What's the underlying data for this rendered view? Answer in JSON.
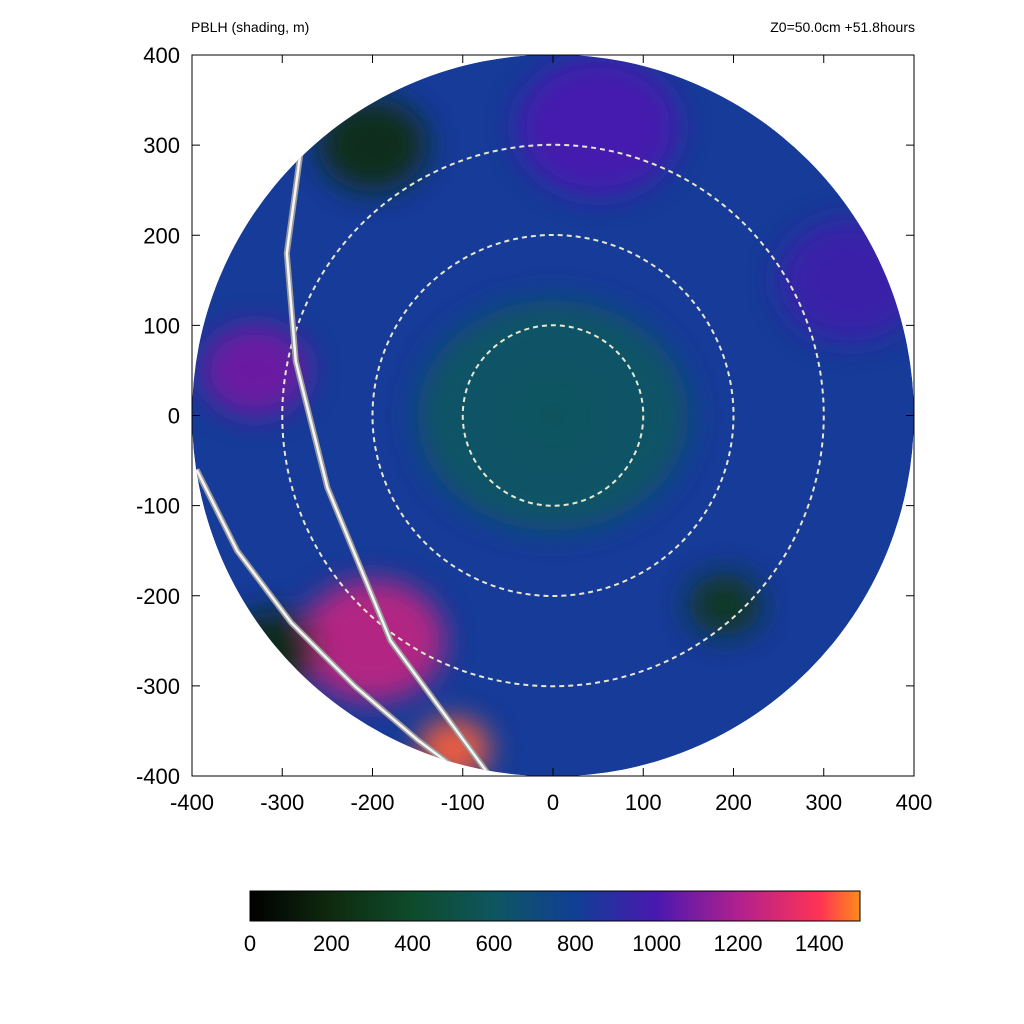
{
  "header": {
    "title": "PBLH (shading, m)",
    "run_info": "Z0=50.0cm  +51.8hours"
  },
  "chart_data": {
    "type": "heatmap",
    "title": "PBLH (shading, m)",
    "subtitle": "Z0=50.0cm  +51.8hours",
    "xlabel": "",
    "ylabel": "",
    "xlim": [
      -400,
      400
    ],
    "ylim": [
      -400,
      400
    ],
    "x_ticks": [
      -400,
      -300,
      -200,
      -100,
      0,
      100,
      200,
      300,
      400
    ],
    "y_ticks": [
      -400,
      -300,
      -200,
      -100,
      0,
      100,
      200,
      300,
      400
    ],
    "x_tick_labels": [
      "-400",
      "-300",
      "-200",
      "-100",
      "0",
      "100",
      "200",
      "300",
      "400"
    ],
    "y_tick_labels": [
      "-400",
      "-300",
      "-200",
      "-100",
      "0",
      "100",
      "200",
      "300",
      "400"
    ],
    "domain_radius": 400,
    "range_rings": [
      100,
      200,
      300
    ],
    "grid": false,
    "colorbar": {
      "min": 0,
      "max": 1500,
      "ticks": [
        0,
        200,
        400,
        600,
        800,
        1000,
        1200,
        1400
      ],
      "tick_labels": [
        "0",
        "200",
        "400",
        "600",
        "800",
        "1000",
        "1200",
        "1400"
      ],
      "stops": [
        {
          "value": 0,
          "color": "#000000"
        },
        {
          "value": 200,
          "color": "#0f2a0f"
        },
        {
          "value": 400,
          "color": "#0e4b2b"
        },
        {
          "value": 600,
          "color": "#0e5660"
        },
        {
          "value": 800,
          "color": "#103f95"
        },
        {
          "value": 1000,
          "color": "#4a18b0"
        },
        {
          "value": 1200,
          "color": "#b0208f"
        },
        {
          "value": 1400,
          "color": "#ff3355"
        },
        {
          "value": 1500,
          "color": "#ff8a1a"
        }
      ]
    },
    "fields": [
      {
        "name": "eye",
        "x": 0,
        "y": 0,
        "r": 40,
        "value": 460
      },
      {
        "name": "inner core",
        "x": 0,
        "y": 0,
        "r": 150,
        "value": 600
      },
      {
        "name": "outer band north",
        "x": 50,
        "y": 320,
        "r": 90,
        "value": 1000
      },
      {
        "name": "outer band east",
        "x": 330,
        "y": 150,
        "r": 80,
        "value": 960
      },
      {
        "name": "warm band southwest",
        "x": -200,
        "y": -250,
        "r": 80,
        "value": 1250
      },
      {
        "name": "warm band far southwest",
        "x": -110,
        "y": -370,
        "r": 40,
        "value": 1450
      },
      {
        "name": "band west",
        "x": -330,
        "y": 50,
        "r": 60,
        "value": 1080
      },
      {
        "name": "dark cells northwest",
        "x": -200,
        "y": 300,
        "r": 60,
        "value": 230
      },
      {
        "name": "dark cells west",
        "x": -310,
        "y": -260,
        "r": 50,
        "value": 200
      },
      {
        "name": "dark cells east",
        "x": 190,
        "y": -210,
        "r": 40,
        "value": 280
      }
    ],
    "annotations": [
      "white boundary curves separating the southwest sector"
    ]
  }
}
